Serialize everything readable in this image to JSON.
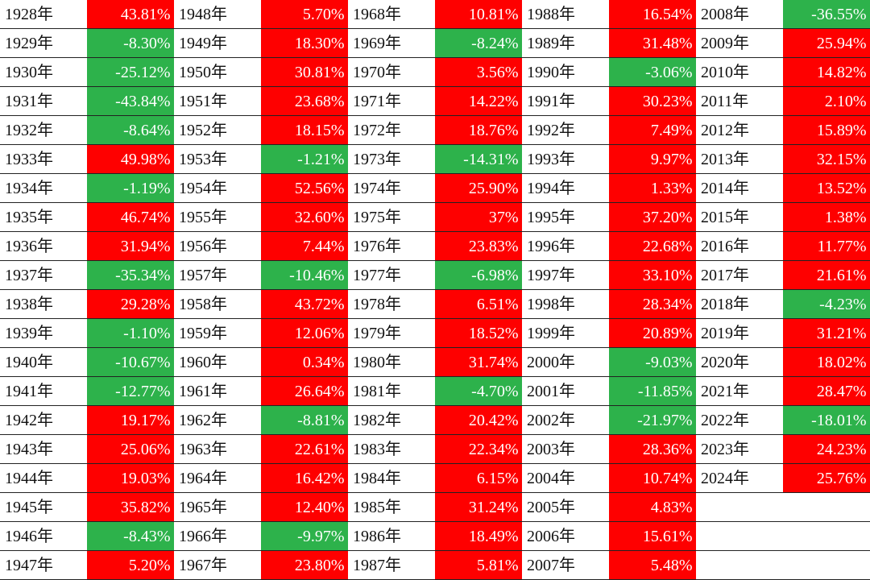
{
  "table": {
    "groups": [
      {
        "years": [
          "1928年",
          "1929年",
          "1930年",
          "1931年",
          "1932年",
          "1933年",
          "1934年",
          "1935年",
          "1936年",
          "1937年",
          "1938年",
          "1939年",
          "1940年",
          "1941年",
          "1942年",
          "1943年",
          "1944年",
          "1945年",
          "1946年",
          "1947年"
        ],
        "values": [
          "43.81%",
          "-8.30%",
          "-25.12%",
          "-43.84%",
          "-8.64%",
          "49.98%",
          "-1.19%",
          "46.74%",
          "31.94%",
          "-35.34%",
          "29.28%",
          "-1.10%",
          "-10.67%",
          "-12.77%",
          "19.17%",
          "25.06%",
          "19.03%",
          "35.82%",
          "-8.43%",
          "5.20%"
        ]
      },
      {
        "years": [
          "1948年",
          "1949年",
          "1950年",
          "1951年",
          "1952年",
          "1953年",
          "1954年",
          "1955年",
          "1956年",
          "1957年",
          "1958年",
          "1959年",
          "1960年",
          "1961年",
          "1962年",
          "1963年",
          "1964年",
          "1965年",
          "1966年",
          "1967年"
        ],
        "values": [
          "5.70%",
          "18.30%",
          "30.81%",
          "23.68%",
          "18.15%",
          "-1.21%",
          "52.56%",
          "32.60%",
          "7.44%",
          "-10.46%",
          "43.72%",
          "12.06%",
          "0.34%",
          "26.64%",
          "-8.81%",
          "22.61%",
          "16.42%",
          "12.40%",
          "-9.97%",
          "23.80%"
        ]
      },
      {
        "years": [
          "1968年",
          "1969年",
          "1970年",
          "1971年",
          "1972年",
          "1973年",
          "1974年",
          "1975年",
          "1976年",
          "1977年",
          "1978年",
          "1979年",
          "1980年",
          "1981年",
          "1982年",
          "1983年",
          "1984年",
          "1985年",
          "1986年",
          "1987年"
        ],
        "values": [
          "10.81%",
          "-8.24%",
          "3.56%",
          "14.22%",
          "18.76%",
          "-14.31%",
          "25.90%",
          "37%",
          "23.83%",
          "-6.98%",
          "6.51%",
          "18.52%",
          "31.74%",
          "-4.70%",
          "20.42%",
          "22.34%",
          "6.15%",
          "31.24%",
          "18.49%",
          "5.81%"
        ]
      },
      {
        "years": [
          "1988年",
          "1989年",
          "1990年",
          "1991年",
          "1992年",
          "1993年",
          "1994年",
          "1995年",
          "1996年",
          "1997年",
          "1998年",
          "1999年",
          "2000年",
          "2001年",
          "2002年",
          "2003年",
          "2004年",
          "2005年",
          "2006年",
          "2007年"
        ],
        "values": [
          "16.54%",
          "31.48%",
          "-3.06%",
          "30.23%",
          "7.49%",
          "9.97%",
          "1.33%",
          "37.20%",
          "22.68%",
          "33.10%",
          "28.34%",
          "20.89%",
          "-9.03%",
          "-11.85%",
          "-21.97%",
          "28.36%",
          "10.74%",
          "4.83%",
          "15.61%",
          "5.48%"
        ]
      },
      {
        "years": [
          "2008年",
          "2009年",
          "2010年",
          "2011年",
          "2012年",
          "2013年",
          "2014年",
          "2015年",
          "2016年",
          "2017年",
          "2018年",
          "2019年",
          "2020年",
          "2021年",
          "2022年",
          "2023年",
          "2024年"
        ],
        "values": [
          "-36.55%",
          "25.94%",
          "14.82%",
          "2.10%",
          "15.89%",
          "32.15%",
          "13.52%",
          "1.38%",
          "11.77%",
          "21.61%",
          "-4.23%",
          "31.21%",
          "18.02%",
          "28.47%",
          "-18.01%",
          "24.23%",
          "25.76%"
        ]
      }
    ]
  }
}
